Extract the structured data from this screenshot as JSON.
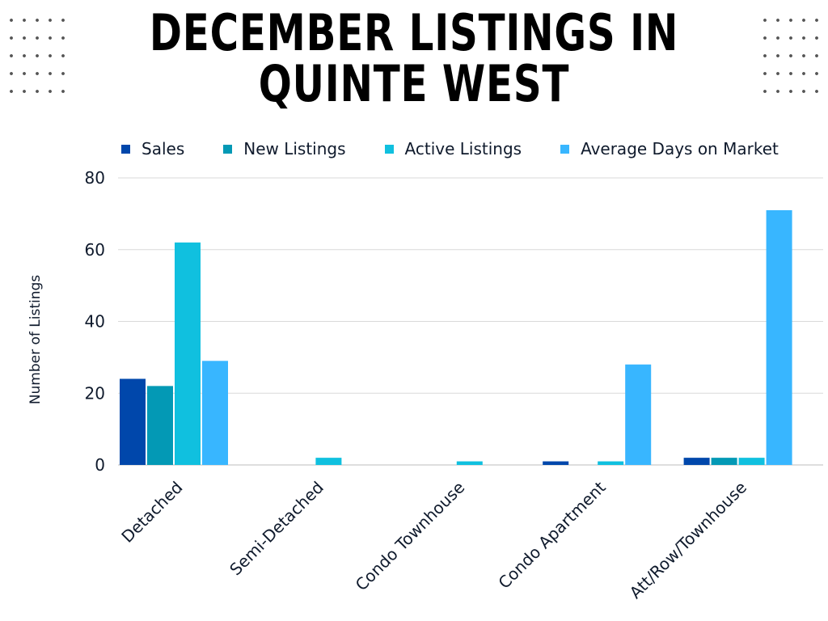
{
  "chart_data": {
    "type": "bar",
    "title": "DECEMBER LISTINGS IN QUINTE WEST",
    "title_lines": [
      "DECEMBER LISTINGS IN",
      "QUINTE WEST"
    ],
    "xlabel": "",
    "ylabel": "Number of Listings",
    "ylim": [
      0,
      80
    ],
    "yticks": [
      0,
      20,
      40,
      60,
      80
    ],
    "grid": true,
    "legend_position": "top",
    "categories": [
      "Detached",
      "Semi-Detached",
      "Condo Townhouse",
      "Condo Apartment",
      "Att/Row/Townhouse"
    ],
    "series": [
      {
        "name": "Sales",
        "color": "#0047ab",
        "values": [
          24,
          0,
          0,
          1,
          2
        ]
      },
      {
        "name": "New Listings",
        "color": "#0399b5",
        "values": [
          22,
          0,
          0,
          0,
          2
        ]
      },
      {
        "name": "Active Listings",
        "color": "#10c0df",
        "values": [
          62,
          2,
          1,
          1,
          2
        ]
      },
      {
        "name": "Average Days on Market",
        "color": "#38b6ff",
        "values": [
          29,
          0,
          0,
          28,
          71
        ]
      }
    ]
  }
}
